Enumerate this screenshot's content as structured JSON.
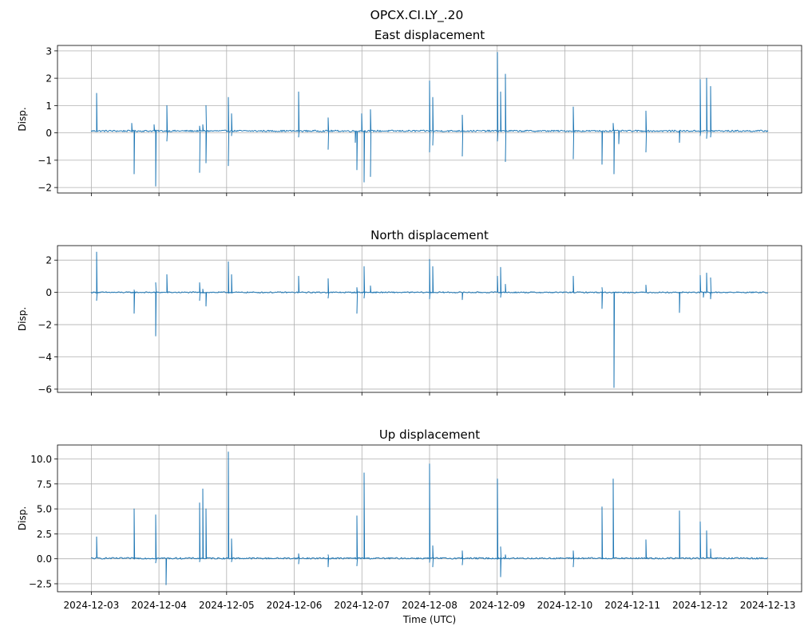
{
  "figure": {
    "suptitle": "OPCX.CI.LY_.20",
    "xlabel": "Time (UTC)",
    "x_ticks": [
      "2024-12-03",
      "2024-12-04",
      "2024-12-05",
      "2024-12-06",
      "2024-12-07",
      "2024-12-08",
      "2024-12-09",
      "2024-12-10",
      "2024-12-11",
      "2024-12-12",
      "2024-12-13"
    ],
    "line_color": "#1f77b4",
    "grid_color": "#b0b0b0"
  },
  "chart_data": [
    {
      "type": "line",
      "title": "East displacement",
      "ylabel": "Disp.",
      "xlabel": "",
      "x_unit": "days since 2024-12-03",
      "xlim": [
        -0.5,
        10.5
      ],
      "ylim": [
        -2.2,
        3.2
      ],
      "yticks": [
        3,
        2,
        1,
        0,
        -1,
        -2
      ],
      "ytick_labels": [
        "3",
        "2",
        "1",
        "0",
        "−1",
        "−2"
      ],
      "grid": true,
      "baseline": 0.07,
      "noise": 0.03,
      "spikes": [
        [
          0.08,
          1.45
        ],
        [
          0.6,
          0.35
        ],
        [
          0.63,
          -1.5
        ],
        [
          0.95,
          -1.95
        ],
        [
          0.93,
          0.3
        ],
        [
          1.12,
          1.0
        ],
        [
          1.12,
          -0.3
        ],
        [
          1.6,
          0.25
        ],
        [
          1.6,
          -1.45
        ],
        [
          1.65,
          0.3
        ],
        [
          1.7,
          -1.1
        ],
        [
          1.7,
          1.0
        ],
        [
          2.02,
          1.3
        ],
        [
          2.02,
          -1.2
        ],
        [
          2.07,
          0.7
        ],
        [
          2.07,
          -0.1
        ],
        [
          3.07,
          1.5
        ],
        [
          3.07,
          -0.15
        ],
        [
          3.5,
          0.55
        ],
        [
          3.5,
          -0.6
        ],
        [
          3.9,
          -0.35
        ],
        [
          3.93,
          -1.35
        ],
        [
          4.0,
          0.7
        ],
        [
          4.03,
          -1.8
        ],
        [
          4.13,
          0.85
        ],
        [
          4.13,
          -1.6
        ],
        [
          5.0,
          1.9
        ],
        [
          5.0,
          -0.7
        ],
        [
          5.05,
          1.3
        ],
        [
          5.05,
          -0.45
        ],
        [
          5.48,
          0.65
        ],
        [
          5.48,
          -0.85
        ],
        [
          6.0,
          2.95
        ],
        [
          6.0,
          -0.3
        ],
        [
          6.05,
          1.5
        ],
        [
          6.12,
          2.15
        ],
        [
          6.12,
          -1.05
        ],
        [
          7.12,
          0.95
        ],
        [
          7.12,
          -0.95
        ],
        [
          7.55,
          -1.15
        ],
        [
          7.72,
          0.35
        ],
        [
          7.73,
          -1.5
        ],
        [
          7.8,
          -0.4
        ],
        [
          8.2,
          0.8
        ],
        [
          8.2,
          -0.7
        ],
        [
          8.7,
          -0.35
        ],
        [
          9.0,
          1.95
        ],
        [
          9.0,
          -0.1
        ],
        [
          9.1,
          2.0
        ],
        [
          9.1,
          -0.2
        ],
        [
          9.15,
          1.7
        ],
        [
          9.15,
          -0.15
        ]
      ]
    },
    {
      "type": "line",
      "title": "North displacement",
      "ylabel": "Disp.",
      "xlabel": "",
      "x_unit": "days since 2024-12-03",
      "xlim": [
        -0.5,
        10.5
      ],
      "ylim": [
        -6.2,
        2.9
      ],
      "yticks": [
        2,
        0,
        -2,
        -4,
        -6
      ],
      "ytick_labels": [
        "2",
        "0",
        "−2",
        "−4",
        "−6"
      ],
      "grid": true,
      "baseline": 0.0,
      "noise": 0.04,
      "spikes": [
        [
          0.08,
          2.5
        ],
        [
          0.08,
          -0.5
        ],
        [
          0.63,
          -1.3
        ],
        [
          0.63,
          0.15
        ],
        [
          0.95,
          -2.7
        ],
        [
          0.95,
          0.6
        ],
        [
          1.12,
          1.1
        ],
        [
          1.6,
          0.6
        ],
        [
          1.6,
          -0.5
        ],
        [
          1.65,
          0.2
        ],
        [
          1.7,
          -0.85
        ],
        [
          2.02,
          1.9
        ],
        [
          2.07,
          1.1
        ],
        [
          3.07,
          1.0
        ],
        [
          3.5,
          0.85
        ],
        [
          3.5,
          -0.35
        ],
        [
          3.93,
          0.3
        ],
        [
          3.93,
          -1.3
        ],
        [
          4.03,
          1.6
        ],
        [
          4.03,
          -0.35
        ],
        [
          4.13,
          0.4
        ],
        [
          5.0,
          2.05
        ],
        [
          5.0,
          -0.4
        ],
        [
          5.05,
          1.6
        ],
        [
          5.48,
          -0.45
        ],
        [
          6.0,
          1.0
        ],
        [
          6.05,
          1.55
        ],
        [
          6.05,
          -0.3
        ],
        [
          6.12,
          0.5
        ],
        [
          7.12,
          1.0
        ],
        [
          7.55,
          -1.0
        ],
        [
          7.55,
          0.3
        ],
        [
          7.73,
          -5.9
        ],
        [
          8.2,
          0.45
        ],
        [
          8.7,
          -1.25
        ],
        [
          9.0,
          1.05
        ],
        [
          9.05,
          -0.3
        ],
        [
          9.1,
          1.2
        ],
        [
          9.15,
          -0.4
        ],
        [
          9.15,
          0.9
        ]
      ]
    },
    {
      "type": "line",
      "title": "Up displacement",
      "ylabel": "Disp.",
      "xlabel": "Time (UTC)",
      "x_unit": "days since 2024-12-03",
      "xlim": [
        -0.5,
        10.5
      ],
      "ylim": [
        -3.3,
        11.4
      ],
      "yticks": [
        10,
        7.5,
        5,
        2.5,
        0,
        -2.5
      ],
      "ytick_labels": [
        "10.0",
        "7.5",
        "5.0",
        "2.5",
        "0.0",
        "−2.5"
      ],
      "grid": true,
      "baseline": 0.05,
      "noise": 0.08,
      "spikes": [
        [
          0.08,
          2.2
        ],
        [
          0.63,
          5.0
        ],
        [
          0.95,
          4.4
        ],
        [
          0.95,
          -0.4
        ],
        [
          1.1,
          -2.6
        ],
        [
          1.6,
          5.6
        ],
        [
          1.6,
          -0.3
        ],
        [
          1.65,
          7.0
        ],
        [
          1.7,
          5.0
        ],
        [
          2.02,
          10.7
        ],
        [
          2.07,
          2.0
        ],
        [
          2.07,
          -0.3
        ],
        [
          3.07,
          0.5
        ],
        [
          3.07,
          -0.5
        ],
        [
          3.5,
          -0.8
        ],
        [
          3.5,
          0.4
        ],
        [
          3.93,
          4.3
        ],
        [
          3.93,
          -0.7
        ],
        [
          4.03,
          8.6
        ],
        [
          5.0,
          9.5
        ],
        [
          5.0,
          -0.35
        ],
        [
          5.05,
          1.3
        ],
        [
          5.05,
          -0.8
        ],
        [
          5.48,
          0.8
        ],
        [
          5.48,
          -0.6
        ],
        [
          6.0,
          8.0
        ],
        [
          6.05,
          -1.8
        ],
        [
          6.05,
          1.2
        ],
        [
          6.12,
          0.4
        ],
        [
          7.12,
          0.8
        ],
        [
          7.12,
          -0.8
        ],
        [
          7.55,
          5.2
        ],
        [
          7.72,
          8.0
        ],
        [
          8.2,
          1.9
        ],
        [
          8.7,
          4.8
        ],
        [
          9.0,
          3.7
        ],
        [
          9.1,
          2.8
        ],
        [
          9.15,
          1.0
        ]
      ]
    }
  ]
}
